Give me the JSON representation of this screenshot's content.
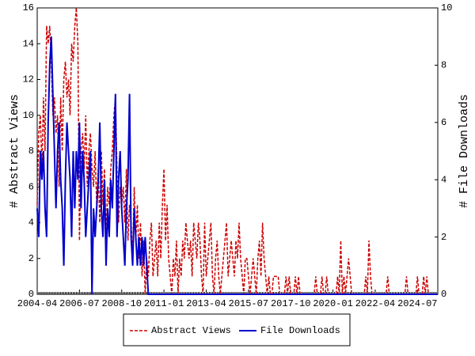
{
  "chart_data": {
    "type": "line",
    "y_label": "# Abstract Views",
    "y2_label": "# File Downloads",
    "categories": [
      "2004-04",
      null,
      null,
      null,
      null,
      null,
      null,
      null,
      null,
      null,
      null,
      null,
      null,
      null,
      null,
      null,
      null,
      null,
      null,
      null,
      null,
      null,
      null,
      null,
      null,
      null,
      null,
      "2006-07",
      null,
      null,
      null,
      null,
      null,
      null,
      null,
      null,
      null,
      null,
      null,
      null,
      null,
      null,
      null,
      null,
      null,
      null,
      null,
      null,
      null,
      null,
      null,
      null,
      null,
      null,
      "2008-10",
      null,
      null,
      null,
      null,
      null,
      null,
      null,
      null,
      null,
      null,
      null,
      null,
      null,
      null,
      null,
      null,
      null,
      null,
      null,
      null,
      null,
      null,
      null,
      null,
      null,
      null,
      "2011-01",
      null,
      null,
      null,
      null,
      null,
      null,
      null,
      null,
      null,
      null,
      null,
      null,
      null,
      null,
      null,
      null,
      null,
      null,
      null,
      null,
      null,
      null,
      null,
      null,
      null,
      null,
      "2013-04",
      null,
      null,
      null,
      null,
      null,
      null,
      null,
      null,
      null,
      null,
      null,
      null,
      null,
      null,
      null,
      null,
      null,
      null,
      null,
      null,
      null,
      null,
      null,
      null,
      null,
      null,
      "2015-07",
      null,
      null,
      null,
      null,
      null,
      null,
      null,
      null,
      null,
      null,
      null,
      null,
      null,
      null,
      null,
      null,
      null,
      null,
      null,
      null,
      null,
      null,
      null,
      null,
      null,
      null,
      "2017-10",
      null,
      null,
      null,
      null,
      null,
      null,
      null,
      null,
      null,
      null,
      null,
      null,
      null,
      null,
      null,
      null,
      null,
      null,
      null,
      null,
      null,
      null,
      null,
      null,
      null,
      null,
      "2020-01",
      null,
      null,
      null,
      null,
      null,
      null,
      null,
      null,
      null,
      null,
      null,
      null,
      null,
      null,
      null,
      null,
      null,
      null,
      null,
      null,
      null,
      null,
      null,
      null,
      null,
      null,
      "2022-04",
      null,
      null,
      null,
      null,
      null,
      null,
      null,
      null,
      null,
      null,
      null,
      null,
      null,
      null,
      null,
      null,
      null,
      null,
      null,
      null,
      null,
      null,
      null,
      null,
      null,
      null,
      "2024-07",
      null,
      null,
      null,
      null,
      null,
      null,
      null,
      null,
      null,
      null,
      null,
      null,
      null
    ],
    "series": [
      {
        "name": "Abstract Views",
        "color": "#cc0000",
        "dashed": true,
        "axis": "y",
        "values": [
          5,
          9,
          10,
          7,
          11,
          8,
          15,
          14,
          15,
          13,
          10,
          11,
          9,
          10,
          6,
          11,
          8,
          12,
          13,
          11,
          12,
          10,
          14,
          13,
          15,
          16,
          14,
          3,
          8,
          9,
          7,
          10,
          6,
          8,
          9,
          7,
          6,
          8,
          5,
          7,
          4,
          8,
          5,
          7,
          3,
          6,
          5,
          7,
          8,
          10,
          11,
          7,
          4,
          6,
          5,
          6,
          4,
          7,
          3,
          5,
          4,
          2,
          6,
          3,
          5,
          2,
          4,
          1,
          3,
          0,
          2,
          1,
          3,
          4,
          1,
          2,
          3,
          1,
          4,
          2,
          5,
          7,
          3,
          5,
          2,
          1,
          0,
          2,
          1,
          3,
          0,
          2,
          1,
          3,
          2,
          4,
          3,
          2,
          3,
          1,
          4,
          3,
          2,
          4,
          3,
          1,
          0,
          4,
          1,
          2,
          3,
          4,
          1,
          0,
          2,
          3,
          1,
          0,
          1,
          2,
          3,
          4,
          1,
          2,
          3,
          2,
          1,
          3,
          2,
          4,
          2,
          1,
          0,
          2,
          2,
          1,
          0,
          1,
          2,
          1,
          0,
          2,
          3,
          1,
          4,
          2,
          1,
          0,
          1,
          0,
          0,
          1,
          1,
          1,
          1,
          0,
          0,
          0,
          0,
          1,
          0,
          1,
          0,
          0,
          0,
          1,
          0,
          1,
          0,
          0,
          0,
          0,
          0,
          0,
          0,
          0,
          0,
          0,
          1,
          0,
          0,
          0,
          1,
          0,
          0,
          1,
          0,
          0,
          0,
          0,
          0,
          0,
          1,
          0,
          3,
          0,
          1,
          0,
          1,
          2,
          1,
          0,
          0,
          0,
          0,
          0,
          0,
          0,
          0,
          0,
          1,
          0,
          3,
          1,
          0,
          0,
          0,
          0,
          0,
          0,
          0,
          0,
          0,
          0,
          1,
          0,
          0,
          0,
          0,
          0,
          0,
          0,
          0,
          0,
          0,
          0,
          1,
          0,
          0,
          0,
          0,
          0,
          0,
          1,
          0,
          0,
          0,
          1,
          0,
          1,
          0,
          0,
          0,
          0,
          0,
          0,
          0
        ]
      },
      {
        "name": "File Downloads",
        "color": "#0000cc",
        "dashed": false,
        "axis": "y2",
        "values": [
          3,
          2,
          5,
          4,
          5,
          3,
          2,
          6,
          8,
          9,
          7,
          5,
          3,
          5,
          6,
          4,
          3,
          1,
          4,
          6,
          5,
          4,
          2,
          5,
          3,
          5,
          4,
          6,
          3,
          5,
          4,
          2,
          3,
          4,
          5,
          0,
          3,
          2,
          3,
          4,
          6,
          3,
          2,
          4,
          1,
          3,
          2,
          4,
          3,
          5,
          7,
          2,
          4,
          5,
          3,
          2,
          1,
          3,
          4,
          7,
          2,
          1,
          3,
          2,
          1,
          2,
          1,
          2,
          1,
          2,
          1,
          0,
          0,
          0,
          0,
          0,
          0,
          0,
          0,
          0,
          0,
          0,
          0,
          0,
          0,
          0,
          0,
          0,
          0,
          0,
          0,
          0,
          0,
          0,
          0,
          0,
          0,
          0,
          0,
          0,
          0,
          0,
          0,
          0,
          0,
          0,
          0,
          0,
          0,
          0,
          0,
          0,
          0,
          0,
          0,
          0,
          0,
          0,
          0,
          0,
          0,
          0,
          0,
          0,
          0,
          0,
          0,
          0,
          0,
          0,
          0,
          0,
          0,
          0,
          0,
          0,
          0,
          0,
          0,
          0,
          0,
          0,
          0,
          0,
          0,
          0,
          0,
          0,
          0,
          0,
          0,
          0,
          0,
          0,
          0,
          0,
          0,
          0,
          0,
          0,
          0,
          0,
          0,
          0,
          0,
          0,
          0,
          0,
          0,
          0,
          0,
          0,
          0,
          0,
          0,
          0,
          0,
          0,
          0,
          0,
          0,
          0,
          0,
          0,
          0,
          0,
          0,
          0,
          0,
          0,
          0,
          0,
          0,
          0,
          0,
          0,
          0,
          0,
          0,
          0,
          0,
          0,
          0,
          0,
          0,
          0,
          0,
          0,
          0,
          0,
          0,
          0,
          0,
          0,
          0,
          0,
          0,
          0,
          0,
          0,
          0,
          0,
          0,
          0,
          0,
          0,
          0,
          0,
          0,
          0,
          0,
          0,
          0,
          0,
          0,
          0,
          0,
          0,
          0,
          0,
          0,
          0,
          0,
          0,
          0,
          0,
          0,
          0,
          0,
          0,
          0,
          0,
          0,
          0,
          0,
          0,
          0
        ]
      }
    ],
    "ylim": [
      0,
      16
    ],
    "yticks": [
      0,
      2,
      4,
      6,
      8,
      10,
      12,
      14,
      16
    ],
    "y2lim": [
      0,
      10
    ],
    "y2ticks": [
      0,
      2,
      4,
      6,
      8,
      10
    ],
    "legend": "bottom"
  }
}
